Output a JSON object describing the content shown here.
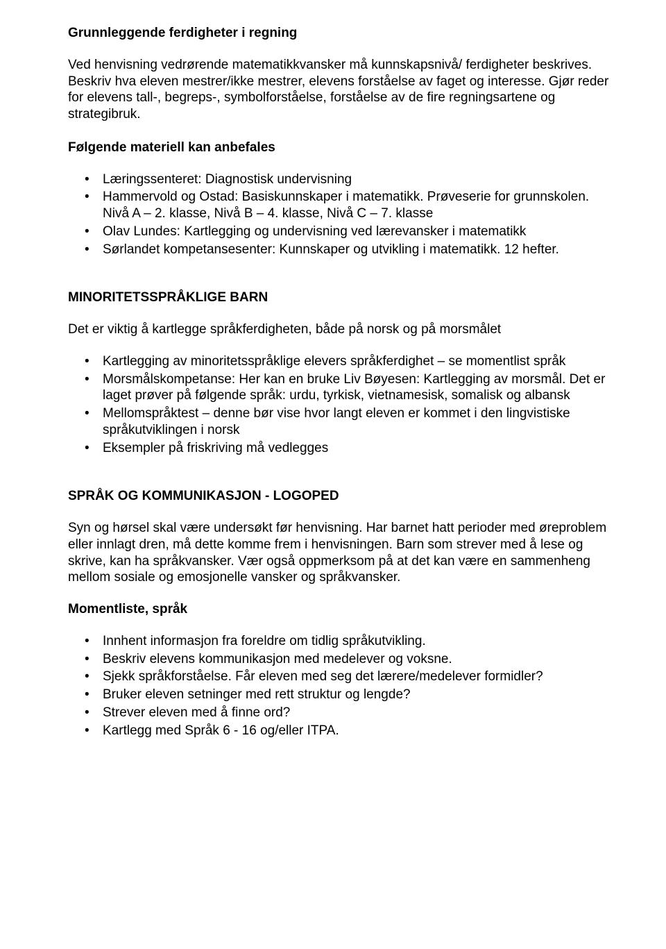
{
  "section1": {
    "heading": "Grunnleggende ferdigheter i regning",
    "p1": "Ved henvisning vedrørende matematikkvansker må kunnskapsnivå/ ferdigheter beskrives. Beskriv hva eleven mestrer/ikke mestrer, elevens forståelse av faget og interesse. Gjør reder for elevens tall-, begreps-, symbolforståelse, forståelse av de fire regningsartene og strategibruk.",
    "materialsHeading": "Følgende materiell kan anbefales",
    "items": [
      "Læringssenteret: Diagnostisk undervisning",
      "Hammervold og Ostad: Basiskunnskaper i matematikk. Prøveserie for grunnskolen. Nivå A – 2. klasse, Nivå B – 4. klasse, Nivå C – 7. klasse",
      "Olav Lundes: Kartlegging og undervisning ved lærevansker i matematikk",
      "Sørlandet kompetansesenter: Kunnskaper og utvikling i matematikk. 12 hefter."
    ]
  },
  "section2": {
    "heading": "MINORITETSSPRÅKLIGE BARN",
    "p1": "Det er viktig å kartlegge språkferdigheten, både på norsk og på morsmålet",
    "items": [
      "Kartlegging av minoritetsspråklige elevers språkferdighet – se momentlist språk",
      "Morsmålskompetanse: Her kan en bruke Liv Bøyesen: Kartlegging av morsmål. Det er laget prøver på følgende språk: urdu, tyrkisk, vietnamesisk, somalisk og albansk",
      "Mellomspråktest – denne bør vise hvor langt eleven er kommet i den lingvistiske språkutviklingen i norsk",
      "Eksempler på friskriving må vedlegges"
    ]
  },
  "section3": {
    "heading": "SPRÅK OG KOMMUNIKASJON - LOGOPED",
    "p1": "Syn og hørsel skal være undersøkt før henvisning. Har barnet hatt perioder med øreproblem eller innlagt dren, må dette komme frem i henvisningen. Barn som strever med å lese og skrive, kan ha språkvansker. Vær også oppmerksom på at det kan være en sammenheng mellom sosiale og emosjonelle vansker og språkvansker.",
    "subHeading": "Momentliste, språk",
    "items": [
      "Innhent informasjon fra foreldre om tidlig språkutvikling.",
      "Beskriv elevens kommunikasjon med medelever og voksne.",
      "Sjekk språkforståelse. Får eleven med seg det lærere/medelever formidler?",
      "Bruker eleven setninger med rett struktur og lengde?",
      "Strever eleven med å finne ord?",
      "Kartlegg med Språk 6 - 16 og/eller ITPA."
    ]
  }
}
